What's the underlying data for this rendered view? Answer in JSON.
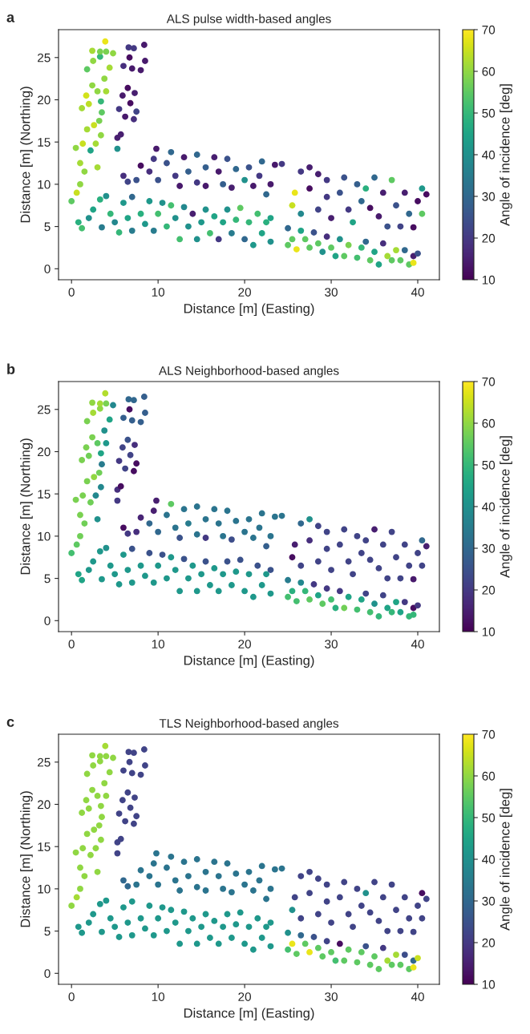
{
  "chart_data": [
    {
      "type": "scatter",
      "title": "ALS pulse width-based angles",
      "annotations": [
        "a"
      ],
      "xlabel": "Distance [m] (Easting)",
      "ylabel": "Distance [m] (Northing)",
      "clabel": "Angle of incidence [deg]",
      "clim": [
        10,
        70
      ],
      "cticks": [
        10,
        20,
        30,
        40,
        50,
        60,
        70
      ],
      "xlim": [
        -1.5,
        42.5
      ],
      "ylim": [
        -1.3,
        28.3
      ],
      "xticks": [
        0,
        10,
        20,
        30,
        40
      ],
      "yticks": [
        0,
        5,
        10,
        15,
        20,
        25
      ],
      "marker": "circle",
      "x": [
        0,
        0.6,
        1,
        1.5,
        1,
        0.5,
        1.3,
        2.2,
        3,
        1.8,
        2.6,
        3.2,
        3.4,
        2.8,
        1.2,
        1.7,
        2,
        2.4,
        3,
        3.4,
        3.8,
        4,
        1.8,
        2.5,
        3.3,
        2.4,
        3.3,
        4,
        3.9,
        4.8,
        4.4,
        3.5,
        5.3,
        5.3,
        5.7,
        5.5,
        6.2,
        7.2,
        6.8,
        7.5,
        5.9,
        6.5,
        7.3,
        6,
        7,
        8,
        6.6,
        7.2,
        6.7,
        8.4,
        8.5,
        6,
        6.5,
        7.5,
        8,
        9,
        9.5,
        9.8,
        10,
        11,
        11.5,
        12,
        12.5,
        13,
        13.5,
        14.5,
        14.5,
        15.5,
        15.5,
        16.5,
        17,
        17.5,
        18,
        18.5,
        19,
        20,
        20.5,
        21,
        21.7,
        22,
        22.5,
        23,
        23.5,
        24.3,
        0.8,
        1.2,
        2,
        2.5,
        3.3,
        3.5,
        4,
        4.5,
        5,
        5.5,
        6,
        6.5,
        7,
        7,
        8,
        8.5,
        9,
        9.5,
        10,
        10.5,
        11,
        11.5,
        12,
        12.5,
        13,
        13.5,
        14,
        14.5,
        15,
        15.5,
        16,
        16.5,
        17,
        17.5,
        18,
        18.5,
        19,
        19.5,
        20,
        20.5,
        21,
        21.5,
        22,
        22.5,
        23,
        23,
        25.5,
        25.8,
        26.5,
        26.5,
        27.5,
        27.5,
        28.5,
        28.5,
        29.5,
        29.5,
        30,
        31,
        31.5,
        32,
        32.5,
        33,
        33.5,
        34,
        34.5,
        35,
        35.5,
        36,
        36.5,
        37,
        37.5,
        38,
        38.5,
        39,
        39.5,
        40,
        40.5,
        40.5,
        41,
        25,
        25,
        25.5,
        26,
        26.5,
        27,
        27.5,
        28,
        28.5,
        29,
        29.5,
        30,
        30.5,
        31,
        31.5,
        32,
        33,
        33.5,
        34,
        34.5,
        35,
        35.5,
        36,
        36.5,
        37,
        37.5,
        38,
        38.5,
        39,
        39.5,
        39.5,
        40
      ],
      "values": [
        8,
        9,
        10,
        11.5,
        12.5,
        14.3,
        14.8,
        14,
        12,
        16.5,
        17,
        17.5,
        15.8,
        14.8,
        19,
        20.5,
        19.5,
        21.7,
        21,
        19.8,
        22.5,
        21,
        23.6,
        24.6,
        25.1,
        25.8,
        25.7,
        25.7,
        26.9,
        25.5,
        23.8,
        18.5,
        14.2,
        15.5,
        15.9,
        18.9,
        18,
        17.7,
        19.6,
        18.6,
        20.5,
        21.4,
        20.8,
        24,
        23.7,
        23.5,
        26.2,
        26.1,
        25,
        26.5,
        24.6,
        11,
        10.3,
        10.5,
        12.2,
        11.5,
        13,
        14.2,
        10.5,
        12.5,
        13.8,
        11,
        9.8,
        13.2,
        11.5,
        13.5,
        10.2,
        12,
        9.8,
        13.2,
        11.5,
        10,
        13,
        9.6,
        11.8,
        10.5,
        12,
        9.8,
        11,
        12.7,
        8.8,
        10,
        12.3,
        12.4,
        5.5,
        4.8,
        6,
        7,
        8.2,
        4.9,
        8.6,
        6.5,
        5.5,
        4.3,
        7.8,
        6,
        8.5,
        4.5,
        6.5,
        5.3,
        8,
        4.5,
        6.5,
        7.8,
        5,
        7.5,
        6,
        3.5,
        7.3,
        5,
        6.5,
        3.5,
        5.5,
        7,
        4.2,
        6.2,
        3.5,
        5.5,
        7,
        4.2,
        5.8,
        7.2,
        3.5,
        5.5,
        2.8,
        6.5,
        4.2,
        5.5,
        3.2,
        6,
        7.5,
        9,
        11.5,
        6.5,
        12,
        9.5,
        11.2,
        7,
        8.5,
        10.5,
        6,
        9,
        10.8,
        7,
        5.5,
        10,
        8,
        9.5,
        7.2,
        10.8,
        6.2,
        9,
        5,
        10.5,
        7.5,
        5,
        9,
        6.5,
        4.9,
        8,
        9.5,
        6.5,
        8.8,
        4.8,
        2.8,
        3.5,
        2.3,
        4.5,
        3.5,
        2.5,
        4.3,
        3,
        2,
        3.8,
        2.5,
        1.5,
        3.5,
        1.5,
        2.8,
        1.3,
        2.5,
        3.2,
        1,
        2,
        0.5,
        3,
        1.5,
        1,
        2.2,
        1,
        2.2,
        0.5,
        1.5,
        0.7,
        1.8
      ],
      "cvalues": [
        55,
        65,
        60,
        60,
        62,
        60,
        65,
        45,
        62,
        62,
        65,
        58,
        60,
        62,
        62,
        66,
        64,
        60,
        60,
        50,
        60,
        62,
        55,
        60,
        50,
        62,
        58,
        58,
        68,
        60,
        62,
        55,
        40,
        15,
        15,
        20,
        14,
        18,
        12,
        22,
        14,
        12,
        15,
        18,
        14,
        14,
        20,
        20,
        12,
        14,
        14,
        18,
        22,
        25,
        12,
        18,
        20,
        14,
        25,
        25,
        30,
        20,
        14,
        14,
        28,
        30,
        20,
        28,
        14,
        15,
        14,
        28,
        25,
        15,
        30,
        40,
        25,
        14,
        20,
        30,
        30,
        14,
        14,
        20,
        48,
        52,
        40,
        45,
        48,
        35,
        40,
        50,
        38,
        50,
        42,
        45,
        30,
        35,
        48,
        42,
        42,
        35,
        52,
        40,
        50,
        52,
        40,
        52,
        38,
        40,
        15,
        40,
        42,
        40,
        52,
        45,
        20,
        45,
        40,
        35,
        50,
        55,
        30,
        50,
        42,
        52,
        45,
        48,
        40,
        45,
        65,
        68,
        20,
        38,
        15,
        12,
        15,
        22,
        20,
        20,
        15,
        25,
        25,
        20,
        45,
        28,
        30,
        48,
        12,
        30,
        14,
        15,
        25,
        55,
        25,
        22,
        15,
        30,
        12,
        12,
        42,
        55,
        12,
        30,
        55,
        55,
        68,
        45,
        55,
        55,
        25,
        55,
        40,
        18,
        55,
        45,
        40,
        55,
        58,
        52,
        50,
        30,
        55,
        45,
        45,
        18,
        62,
        55,
        62,
        55,
        30,
        55,
        15,
        68,
        25
      ]
    },
    {
      "type": "scatter",
      "title": "ALS Neighborhood-based angles",
      "annotations": [
        "b"
      ],
      "xlabel": "Distance [m] (Easting)",
      "ylabel": "Distance [m] (Northing)",
      "clabel": "Angle of incidence [deg]",
      "clim": [
        10,
        70
      ],
      "cticks": [
        10,
        20,
        30,
        40,
        50,
        60,
        70
      ],
      "xlim": [
        -1.5,
        42.5
      ],
      "ylim": [
        -1.3,
        28.3
      ],
      "xticks": [
        0,
        10,
        20,
        30,
        40
      ],
      "yticks": [
        0,
        5,
        10,
        15,
        20,
        25
      ],
      "marker": "circle",
      "x": [
        0,
        0.6,
        1,
        1.5,
        1,
        0.5,
        1.3,
        2.2,
        3,
        1.8,
        2.6,
        3.2,
        3.4,
        2.8,
        1.2,
        1.7,
        2,
        2.4,
        3,
        3.4,
        3.8,
        4,
        1.8,
        2.5,
        3.3,
        2.4,
        3.3,
        4,
        3.9,
        4.8,
        4.4,
        3.5,
        5.3,
        5.3,
        5.7,
        5.5,
        6.2,
        7.2,
        6.8,
        7.5,
        5.9,
        6.5,
        7.3,
        6,
        7,
        8,
        6.6,
        7.2,
        6.7,
        8.4,
        8.5,
        6,
        6.5,
        7.5,
        8,
        9,
        9.5,
        9.8,
        10,
        11,
        11.5,
        12,
        12.5,
        13,
        13.5,
        14.5,
        14.5,
        15.5,
        15.5,
        16.5,
        17,
        17.5,
        18,
        18.5,
        19,
        20,
        20.5,
        21,
        21.7,
        22,
        22.5,
        23,
        23.5,
        24.3,
        0.8,
        1.2,
        2,
        2.5,
        3.3,
        3.5,
        4,
        4.5,
        5,
        5.5,
        6,
        6.5,
        7,
        7,
        8,
        8.5,
        9,
        9.5,
        10,
        10.5,
        11,
        11.5,
        12,
        12.5,
        13,
        13.5,
        14,
        14.5,
        15,
        15.5,
        16,
        16.5,
        17,
        17.5,
        18,
        18.5,
        19,
        19.5,
        20,
        20.5,
        21,
        21.5,
        22,
        22.5,
        23,
        23,
        25.5,
        25.8,
        26.5,
        26.5,
        27.5,
        27.5,
        28.5,
        28.5,
        29.5,
        29.5,
        30,
        31,
        31.5,
        32,
        32.5,
        33,
        33.5,
        34,
        34.5,
        35,
        35.5,
        36,
        36.5,
        37,
        37.5,
        38,
        38.5,
        39,
        39.5,
        40,
        40.5,
        40.5,
        41,
        25,
        25,
        25.5,
        26,
        26.5,
        27,
        27.5,
        28,
        28.5,
        29,
        29.5,
        30,
        30.5,
        31,
        31.5,
        32,
        33,
        33.5,
        34,
        34.5,
        35,
        35.5,
        36,
        36.5,
        37,
        37.5,
        38,
        38.5,
        39,
        39.5,
        39.5,
        40
      ],
      "values": [
        8,
        9,
        10,
        11.5,
        12.5,
        14.3,
        14.8,
        14,
        12,
        16.5,
        17,
        17.5,
        15.8,
        14.8,
        19,
        20.5,
        19.5,
        21.7,
        21,
        19.8,
        22.5,
        21,
        23.6,
        24.6,
        25.1,
        25.8,
        25.7,
        25.7,
        26.9,
        25.5,
        23.8,
        18.5,
        14.2,
        15.5,
        15.9,
        18.9,
        18,
        17.7,
        19.6,
        18.6,
        20.5,
        21.4,
        20.8,
        24,
        23.7,
        23.5,
        26.2,
        26.1,
        25,
        26.5,
        24.6,
        11,
        10.3,
        10.5,
        12.2,
        11.5,
        13,
        14.2,
        10.5,
        12.5,
        13.8,
        11,
        9.8,
        13.2,
        11.5,
        13.5,
        10.2,
        12,
        9.8,
        13.2,
        11.5,
        10,
        13,
        9.6,
        11.8,
        10.5,
        12,
        9.8,
        11,
        12.7,
        8.8,
        10,
        12.3,
        12.4,
        5.5,
        4.8,
        6,
        7,
        8.2,
        4.9,
        8.6,
        6.5,
        5.5,
        4.3,
        7.8,
        6,
        8.5,
        4.5,
        6.5,
        5.3,
        8,
        4.5,
        6.5,
        7.8,
        5,
        7.5,
        6,
        3.5,
        7.3,
        5,
        6.5,
        3.5,
        5.5,
        7,
        4.2,
        6.2,
        3.5,
        5.5,
        7,
        4.2,
        5.8,
        7.2,
        3.5,
        5.5,
        2.8,
        6.5,
        4.2,
        5.5,
        3.2,
        6,
        7.5,
        9,
        11.5,
        6.5,
        12,
        9.5,
        11.2,
        7,
        8.5,
        10.5,
        6,
        9,
        10.8,
        7,
        5.5,
        10,
        8,
        9.5,
        7.2,
        10.8,
        6.2,
        9,
        5,
        10.5,
        7.5,
        5,
        9,
        6.5,
        4.9,
        8,
        9.5,
        6.5,
        8.8,
        4.8,
        2.8,
        3.5,
        2.3,
        4.5,
        3.5,
        2.5,
        4.3,
        3,
        2,
        3.8,
        2.5,
        1.5,
        3.5,
        1.5,
        2.8,
        1.3,
        2.5,
        3.2,
        1,
        2,
        0.5,
        3,
        1.5,
        1,
        2.2,
        1,
        2.2,
        0.5,
        1.5,
        0.7,
        1.8
      ],
      "cvalues": [
        52,
        55,
        57,
        57,
        58,
        58,
        58,
        57,
        40,
        58,
        60,
        57,
        38,
        38,
        58,
        58,
        57,
        58,
        55,
        45,
        40,
        42,
        58,
        62,
        60,
        60,
        62,
        58,
        63,
        38,
        45,
        35,
        20,
        18,
        12,
        20,
        22,
        12,
        22,
        12,
        22,
        25,
        18,
        28,
        28,
        28,
        30,
        30,
        12,
        28,
        28,
        12,
        20,
        18,
        16,
        30,
        15,
        15,
        30,
        33,
        55,
        33,
        25,
        33,
        35,
        33,
        33,
        33,
        20,
        33,
        33,
        33,
        33,
        24,
        33,
        33,
        33,
        33,
        33,
        33,
        28,
        33,
        33,
        33,
        45,
        45,
        42,
        42,
        42,
        42,
        40,
        42,
        42,
        42,
        42,
        42,
        25,
        42,
        42,
        42,
        25,
        42,
        42,
        25,
        42,
        42,
        42,
        42,
        25,
        42,
        42,
        42,
        42,
        25,
        42,
        42,
        42,
        42,
        25,
        42,
        42,
        25,
        42,
        42,
        42,
        25,
        42,
        42,
        42,
        25,
        12,
        15,
        30,
        22,
        40,
        18,
        22,
        22,
        22,
        22,
        22,
        22,
        22,
        22,
        22,
        22,
        22,
        22,
        22,
        15,
        22,
        22,
        22,
        22,
        22,
        22,
        22,
        22,
        14,
        22,
        30,
        22,
        15,
        35,
        52,
        48,
        52,
        38,
        50,
        55,
        20,
        45,
        55,
        20,
        52,
        48,
        20,
        57,
        45,
        52,
        45,
        22,
        52,
        40,
        50,
        22,
        45,
        50,
        45,
        45,
        20,
        50,
        12,
        50,
        20
      ]
    },
    {
      "type": "scatter",
      "title": "TLS Neighborhood-based angles",
      "annotations": [
        "c"
      ],
      "xlabel": "Distance [m] (Easting)",
      "ylabel": "Distance [m] (Northing)",
      "clabel": "Angle of incidence [deg]",
      "clim": [
        10,
        70
      ],
      "cticks": [
        10,
        20,
        30,
        40,
        50,
        60,
        70
      ],
      "xlim": [
        -1.5,
        42.5
      ],
      "ylim": [
        -1.3,
        28.3
      ],
      "xticks": [
        0,
        10,
        20,
        30,
        40
      ],
      "yticks": [
        0,
        5,
        10,
        15,
        20,
        25
      ],
      "marker": "circle",
      "x": [
        0,
        0.6,
        1,
        1.5,
        1,
        0.5,
        1.3,
        2.2,
        3,
        1.8,
        2.6,
        3.2,
        3.4,
        2.8,
        1.2,
        1.7,
        2,
        2.4,
        3,
        3.4,
        3.8,
        4,
        1.8,
        2.5,
        3.3,
        2.4,
        3.3,
        4,
        3.9,
        4.8,
        4.4,
        3.5,
        5.3,
        5.3,
        5.7,
        5.5,
        6.2,
        7.2,
        6.8,
        7.5,
        5.9,
        6.5,
        7.3,
        6,
        7,
        8,
        6.6,
        7.2,
        6.7,
        8.4,
        8.5,
        6,
        6.5,
        7.5,
        8,
        9,
        9.5,
        9.8,
        10,
        11,
        11.5,
        12,
        12.5,
        13,
        13.5,
        14.5,
        14.5,
        15.5,
        15.5,
        16.5,
        17,
        17.5,
        18,
        18.5,
        19,
        20,
        20.5,
        21,
        21.7,
        22,
        22.5,
        23,
        23.5,
        24.3,
        0.8,
        1.2,
        2,
        2.5,
        3.3,
        3.5,
        4,
        4.5,
        5,
        5.5,
        6,
        6.5,
        7,
        7,
        8,
        8.5,
        9,
        9.5,
        10,
        10.5,
        11,
        11.5,
        12,
        12.5,
        13,
        13.5,
        14,
        14.5,
        15,
        15.5,
        16,
        16.5,
        17,
        17.5,
        18,
        18.5,
        19,
        19.5,
        20,
        20.5,
        21,
        21.5,
        22,
        22.5,
        23,
        23,
        25.5,
        25.8,
        26.5,
        26.5,
        27.5,
        27.5,
        28.5,
        28.5,
        29.5,
        29.5,
        30,
        31,
        31.5,
        32,
        32.5,
        33,
        33.5,
        34,
        34.5,
        35,
        35.5,
        36,
        36.5,
        37,
        37.5,
        38,
        38.5,
        39,
        39.5,
        40,
        40.5,
        40.5,
        41,
        25,
        25,
        25.5,
        26,
        26.5,
        27,
        27.5,
        28,
        28.5,
        29,
        29.5,
        30,
        30.5,
        31,
        31.5,
        32,
        33,
        33.5,
        34,
        34.5,
        35,
        35.5,
        36,
        36.5,
        37,
        37.5,
        38,
        38.5,
        39,
        39.5,
        39.5,
        40
      ],
      "values": [
        8,
        9,
        10,
        11.5,
        12.5,
        14.3,
        14.8,
        14,
        12,
        16.5,
        17,
        17.5,
        15.8,
        14.8,
        19,
        20.5,
        19.5,
        21.7,
        21,
        19.8,
        22.5,
        21,
        23.6,
        24.6,
        25.1,
        25.8,
        25.7,
        25.7,
        26.9,
        25.5,
        23.8,
        18.5,
        14.2,
        15.5,
        15.9,
        18.9,
        18,
        17.7,
        19.6,
        18.6,
        20.5,
        21.4,
        20.8,
        24,
        23.7,
        23.5,
        26.2,
        26.1,
        25,
        26.5,
        24.6,
        11,
        10.3,
        10.5,
        12.2,
        11.5,
        13,
        14.2,
        10.5,
        12.5,
        13.8,
        11,
        9.8,
        13.2,
        11.5,
        13.5,
        10.2,
        12,
        9.8,
        13.2,
        11.5,
        10,
        13,
        9.6,
        11.8,
        10.5,
        12,
        9.8,
        11,
        12.7,
        8.8,
        10,
        12.3,
        12.4,
        5.5,
        4.8,
        6,
        7,
        8.2,
        4.9,
        8.6,
        6.5,
        5.5,
        4.3,
        7.8,
        6,
        8.5,
        4.5,
        6.5,
        5.3,
        8,
        4.5,
        6.5,
        7.8,
        5,
        7.5,
        6,
        3.5,
        7.3,
        5,
        6.5,
        3.5,
        5.5,
        7,
        4.2,
        6.2,
        3.5,
        5.5,
        7,
        4.2,
        5.8,
        7.2,
        3.5,
        5.5,
        2.8,
        6.5,
        4.2,
        5.5,
        3.2,
        6,
        7.5,
        9,
        11.5,
        6.5,
        12,
        9.5,
        11.2,
        7,
        8.5,
        10.5,
        6,
        9,
        10.8,
        7,
        5.5,
        10,
        8,
        9.5,
        7.2,
        10.8,
        6.2,
        9,
        5,
        10.5,
        7.5,
        5,
        9,
        6.5,
        4.9,
        8,
        9.5,
        6.5,
        8.8,
        4.8,
        2.8,
        3.5,
        2.3,
        4.5,
        3.5,
        2.5,
        4.3,
        3,
        2,
        3.8,
        2.5,
        1.5,
        3.5,
        1.5,
        2.8,
        1.3,
        2.5,
        3.2,
        1,
        2,
        0.5,
        3,
        1.5,
        1,
        2.2,
        1,
        2.2,
        0.5,
        1.5,
        0.7,
        1.8
      ],
      "cvalues": [
        60,
        62,
        60,
        60,
        60,
        60,
        60,
        60,
        60,
        60,
        60,
        60,
        60,
        60,
        60,
        60,
        60,
        60,
        60,
        60,
        60,
        60,
        60,
        60,
        60,
        60,
        60,
        60,
        62,
        60,
        60,
        60,
        22,
        22,
        22,
        22,
        22,
        22,
        22,
        22,
        22,
        22,
        22,
        22,
        22,
        22,
        22,
        22,
        22,
        22,
        22,
        30,
        30,
        33,
        33,
        33,
        33,
        33,
        33,
        33,
        33,
        33,
        33,
        33,
        33,
        33,
        33,
        33,
        33,
        33,
        33,
        33,
        33,
        33,
        33,
        33,
        33,
        33,
        33,
        33,
        33,
        33,
        33,
        33,
        42,
        42,
        42,
        42,
        42,
        42,
        42,
        42,
        42,
        42,
        42,
        42,
        42,
        42,
        42,
        42,
        42,
        42,
        42,
        42,
        42,
        42,
        42,
        42,
        42,
        42,
        42,
        42,
        42,
        42,
        42,
        42,
        42,
        42,
        42,
        42,
        42,
        42,
        42,
        42,
        42,
        42,
        42,
        42,
        42,
        42,
        40,
        22,
        22,
        22,
        22,
        22,
        22,
        22,
        22,
        22,
        22,
        22,
        22,
        22,
        22,
        22,
        22,
        40,
        22,
        22,
        22,
        22,
        22,
        22,
        22,
        22,
        22,
        22,
        22,
        22,
        12,
        22,
        22,
        40,
        52,
        68,
        55,
        30,
        55,
        68,
        25,
        55,
        55,
        22,
        55,
        52,
        12,
        55,
        55,
        55,
        55,
        25,
        55,
        55,
        55,
        20,
        62,
        55,
        62,
        55,
        24,
        55,
        30,
        68,
        65
      ]
    }
  ]
}
